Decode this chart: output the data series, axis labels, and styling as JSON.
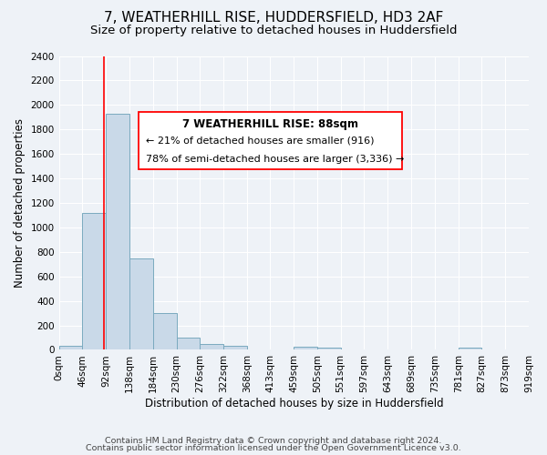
{
  "title": "7, WEATHERHILL RISE, HUDDERSFIELD, HD3 2AF",
  "subtitle": "Size of property relative to detached houses in Huddersfield",
  "xlabel": "Distribution of detached houses by size in Huddersfield",
  "ylabel": "Number of detached properties",
  "bar_edges": [
    0,
    46,
    92,
    138,
    184,
    230,
    276,
    322,
    368,
    413,
    459,
    505,
    551,
    597,
    643,
    689,
    735,
    781,
    827,
    873,
    919
  ],
  "bar_heights": [
    30,
    1120,
    1930,
    750,
    300,
    100,
    45,
    30,
    0,
    0,
    25,
    15,
    0,
    0,
    0,
    0,
    0,
    15,
    0,
    0
  ],
  "bar_color": "#c9d9e8",
  "bar_edge_color": "#7aaabf",
  "red_line_x": 88,
  "ylim": [
    0,
    2400
  ],
  "yticks": [
    0,
    200,
    400,
    600,
    800,
    1000,
    1200,
    1400,
    1600,
    1800,
    2000,
    2200,
    2400
  ],
  "xtick_labels": [
    "0sqm",
    "46sqm",
    "92sqm",
    "138sqm",
    "184sqm",
    "230sqm",
    "276sqm",
    "322sqm",
    "368sqm",
    "413sqm",
    "459sqm",
    "505sqm",
    "551sqm",
    "597sqm",
    "643sqm",
    "689sqm",
    "735sqm",
    "781sqm",
    "827sqm",
    "873sqm",
    "919sqm"
  ],
  "annotation_title": "7 WEATHERHILL RISE: 88sqm",
  "annotation_line1": "← 21% of detached houses are smaller (916)",
  "annotation_line2": "78% of semi-detached houses are larger (3,336) →",
  "footer1": "Contains HM Land Registry data © Crown copyright and database right 2024.",
  "footer2": "Contains public sector information licensed under the Open Government Licence v3.0.",
  "bg_color": "#eef2f7",
  "plot_bg_color": "#eef2f7",
  "grid_color": "#ffffff",
  "title_fontsize": 11,
  "subtitle_fontsize": 9.5,
  "axis_label_fontsize": 8.5,
  "tick_fontsize": 7.5,
  "footer_fontsize": 6.8
}
